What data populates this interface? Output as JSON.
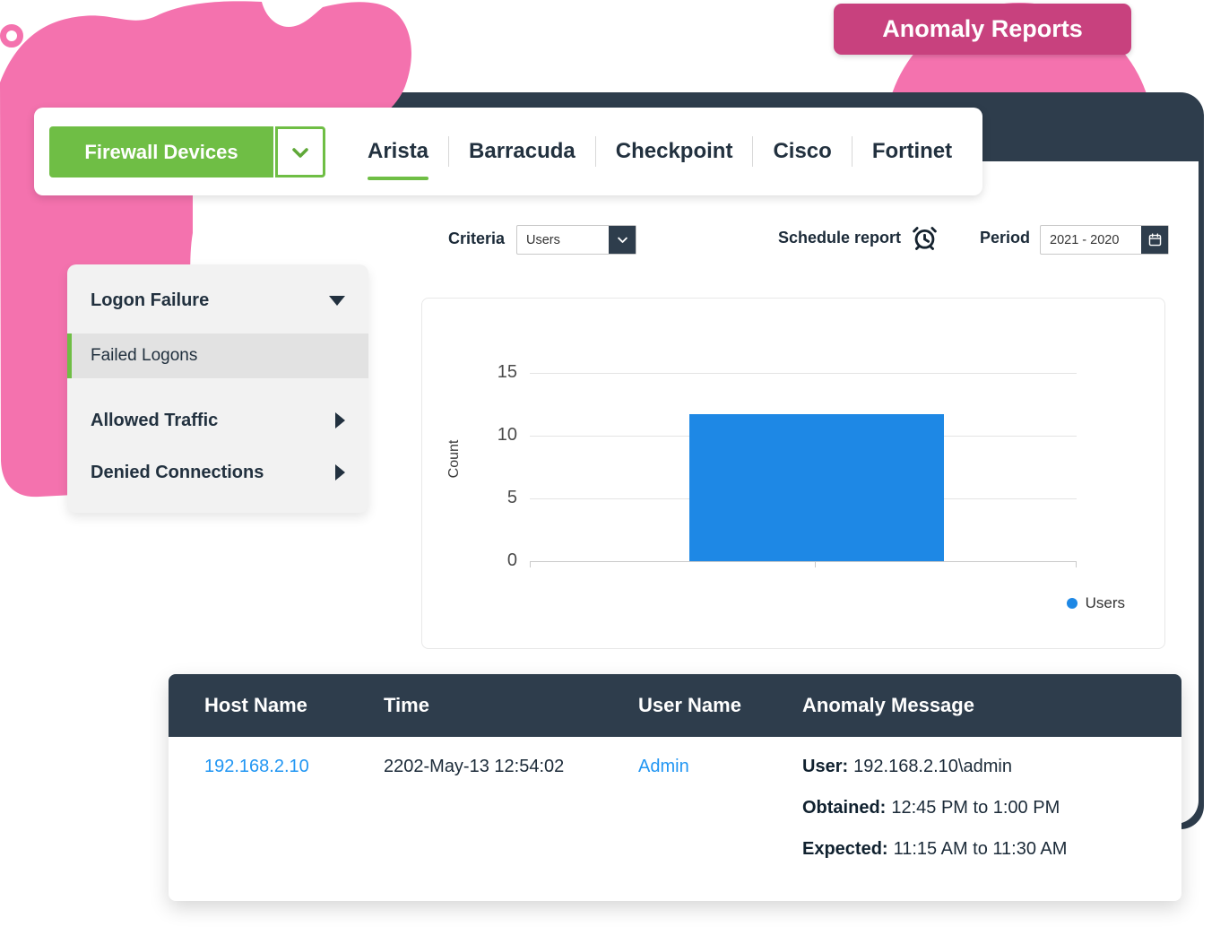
{
  "page": {
    "badge": "Anomaly Reports"
  },
  "toolbar": {
    "device_selector": {
      "label": "Firewall Devices"
    },
    "tabs": [
      {
        "label": "Arista",
        "active": true
      },
      {
        "label": "Barracuda",
        "active": false
      },
      {
        "label": "Checkpoint",
        "active": false
      },
      {
        "label": "Cisco",
        "active": false
      },
      {
        "label": "Fortinet",
        "active": false
      }
    ]
  },
  "filters": {
    "criteria": {
      "label": "Criteria",
      "value": "Users"
    },
    "schedule": {
      "label": "Schedule report"
    },
    "period": {
      "label": "Period",
      "value": "2021 - 2020"
    }
  },
  "sidebar": {
    "items": [
      {
        "label": "Logon Failure",
        "state": "expanded"
      },
      {
        "label": "Failed Logons",
        "state": "selected"
      },
      {
        "label": "Allowed Traffic",
        "state": "collapsed"
      },
      {
        "label": "Denied Connections",
        "state": "collapsed"
      }
    ]
  },
  "chart_data": {
    "type": "bar",
    "title": "",
    "xlabel": "",
    "ylabel": "Count",
    "categories": [
      "Users"
    ],
    "series": [
      {
        "name": "Users",
        "values": [
          11.7
        ],
        "color": "#1E88E5"
      }
    ],
    "ylim": [
      0,
      15
    ],
    "yticks": [
      0,
      5,
      10,
      15
    ],
    "grid": true,
    "legend": [
      {
        "label": "Users",
        "color": "#1E88E5"
      }
    ],
    "legend_position": "bottom-right"
  },
  "table": {
    "columns": [
      "Host Name",
      "Time",
      "User Name",
      "Anomaly Message"
    ],
    "rows": [
      {
        "host_name": "192.168.2.10",
        "time": "2202-May-13 12:54:02",
        "user_name": "Admin",
        "anomaly_message": [
          {
            "label": "User:",
            "value": "192.168.2.10\\admin"
          },
          {
            "label": "Obtained:",
            "value": "12:45 PM to 1:00 PM"
          },
          {
            "label": "Expected:",
            "value": "11:15 AM to 11:30 AM"
          }
        ]
      }
    ]
  },
  "colors": {
    "pink": "#F472AE",
    "badge_pink": "#C8417E",
    "navy": "#2E3D4C",
    "green": "#6FBE45",
    "bar_blue": "#1E88E5",
    "link_blue": "#2196F3"
  }
}
